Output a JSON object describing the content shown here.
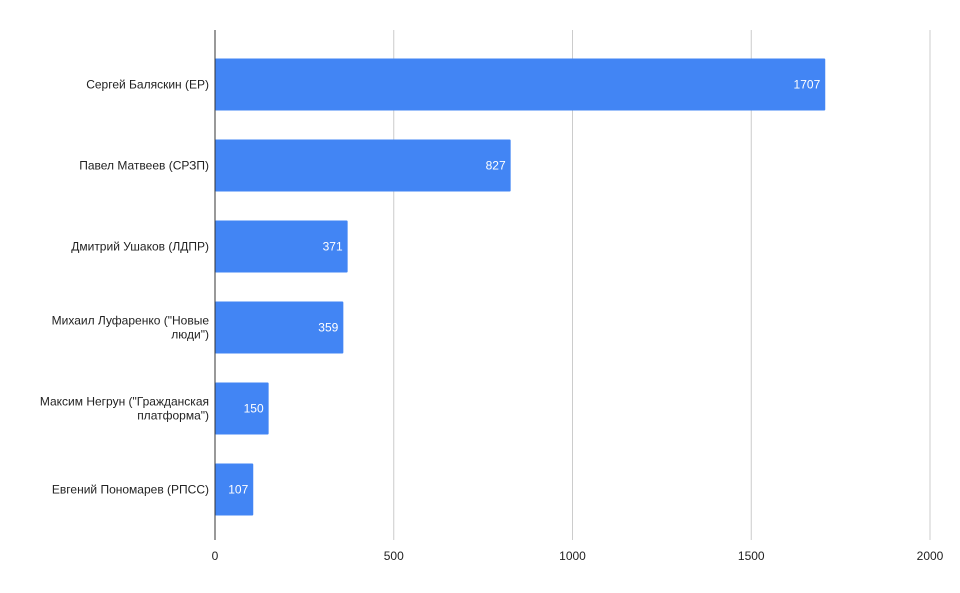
{
  "chart_data": {
    "type": "bar",
    "orientation": "horizontal",
    "categories": [
      "Сергей Баляскин (ЕР)",
      "Павел Матвеев (СРЗП)",
      "Дмитрий Ушаков (ЛДПР)",
      "Михаил Луфаренко (\"Новые люди\")",
      "Максим Негрун (\"Гражданская платформа\")",
      "Евгений Пономарев (РПСС)"
    ],
    "category_label_lines": [
      [
        "Сергей Баляскин (ЕР)"
      ],
      [
        "Павел Матвеев (СРЗП)"
      ],
      [
        "Дмитрий Ушаков (ЛДПР)"
      ],
      [
        "Михаил Луфаренко (\"Новые",
        "люди\")"
      ],
      [
        "Максим Негрун (\"Гражданская",
        "платформа\")"
      ],
      [
        "Евгений Пономарев (РПСС)"
      ]
    ],
    "values": [
      1707,
      827,
      371,
      359,
      150,
      107
    ],
    "xlim": [
      0,
      2000
    ],
    "x_ticks": [
      0,
      500,
      1000,
      1500,
      2000
    ],
    "title": "",
    "xlabel": "",
    "ylabel": "",
    "grid": "vertical",
    "legend": "none",
    "data_labels": true,
    "bar_color": "#4285f4",
    "grid_color": "#cccccc",
    "axis_color": "#333333"
  }
}
